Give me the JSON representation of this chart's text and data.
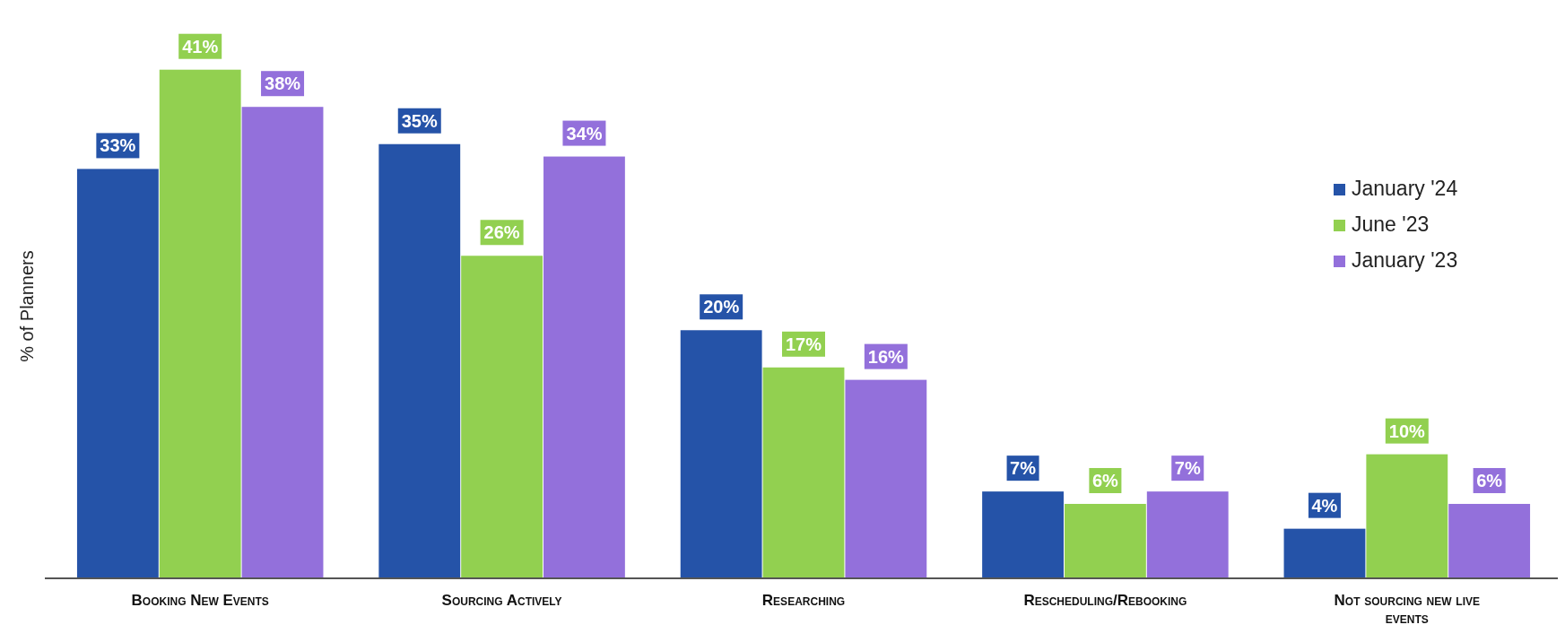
{
  "chart_data": {
    "type": "bar",
    "ylabel": "% of Planners",
    "categories": [
      "Booking New Events",
      "Sourcing Actively",
      "Researching",
      "Rescheduling/Rebooking",
      "Not sourcing new live events"
    ],
    "series": [
      {
        "name": "January '24",
        "color": "#2553a8",
        "values": [
          33,
          35,
          20,
          7,
          4
        ],
        "value_labels": [
          "33%",
          "35%",
          "20%",
          "7%",
          "4%"
        ]
      },
      {
        "name": "June '23",
        "color": "#92d050",
        "values": [
          41,
          26,
          17,
          6,
          10
        ],
        "value_labels": [
          "41%",
          "26%",
          "17%",
          "6%",
          "10%"
        ]
      },
      {
        "name": "January '23",
        "color": "#9370db",
        "values": [
          38,
          34,
          16,
          7,
          6
        ],
        "value_labels": [
          "38%",
          "34%",
          "16%",
          "7%",
          "6%"
        ]
      }
    ],
    "legend": "right"
  }
}
